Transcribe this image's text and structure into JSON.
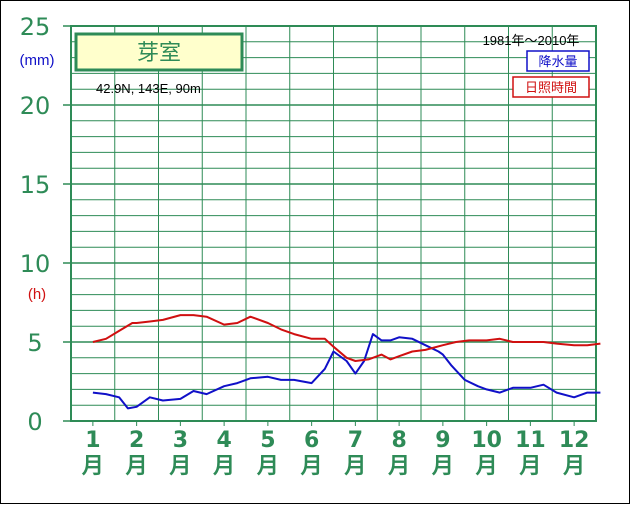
{
  "chart_data": {
    "type": "line",
    "title": "芽室",
    "location": "42.9N,  143E,  90m",
    "period": "1981年～2010年",
    "y_unit_precip": "(mm)",
    "y_unit_sun": "(h)",
    "ylim": [
      0,
      25
    ],
    "y_ticks": [
      "0",
      "5",
      "10",
      "15",
      "20",
      "25"
    ],
    "categories": [
      "1\n月",
      "2\n月",
      "3\n月",
      "4\n月",
      "5\n月",
      "6\n月",
      "7\n月",
      "8\n月",
      "9\n月",
      "10\n月",
      "11\n月",
      "12\n月"
    ],
    "month_numbers": [
      "1",
      "2",
      "3",
      "4",
      "5",
      "6",
      "7",
      "8",
      "9",
      "10",
      "11",
      "12"
    ],
    "month_suffix": "月",
    "series": [
      {
        "name": "降水量",
        "color": "#1010c8",
        "x": [
          1.0,
          1.3,
          1.6,
          1.8,
          2.0,
          2.3,
          2.6,
          3.0,
          3.3,
          3.6,
          4.0,
          4.3,
          4.6,
          5.0,
          5.3,
          5.6,
          6.0,
          6.3,
          6.5,
          6.8,
          7.0,
          7.2,
          7.4,
          7.6,
          7.8,
          8.0,
          8.3,
          8.6,
          8.9,
          9.0,
          9.2,
          9.5,
          9.8,
          10.0,
          10.3,
          10.6,
          11.0,
          11.3,
          11.6,
          12.0,
          12.3,
          12.6
        ],
        "values": [
          1.8,
          1.7,
          1.5,
          0.8,
          0.9,
          1.5,
          1.3,
          1.4,
          1.9,
          1.7,
          2.2,
          2.4,
          2.7,
          2.8,
          2.6,
          2.6,
          2.4,
          3.3,
          4.4,
          3.8,
          3.0,
          3.8,
          5.5,
          5.1,
          5.1,
          5.3,
          5.2,
          4.8,
          4.4,
          4.2,
          3.5,
          2.6,
          2.2,
          2.0,
          1.8,
          2.1,
          2.1,
          2.3,
          1.8,
          1.5,
          1.8,
          1.8
        ]
      },
      {
        "name": "日照時間",
        "color": "#d01010",
        "x": [
          1.0,
          1.3,
          1.6,
          1.9,
          2.0,
          2.3,
          2.6,
          3.0,
          3.3,
          3.6,
          4.0,
          4.3,
          4.6,
          5.0,
          5.3,
          5.6,
          6.0,
          6.3,
          6.5,
          6.8,
          7.0,
          7.3,
          7.6,
          7.8,
          8.0,
          8.3,
          8.6,
          9.0,
          9.3,
          9.6,
          10.0,
          10.3,
          10.6,
          11.0,
          11.3,
          11.6,
          12.0,
          12.3,
          12.6
        ],
        "values": [
          5.0,
          5.2,
          5.7,
          6.2,
          6.2,
          6.3,
          6.4,
          6.7,
          6.7,
          6.6,
          6.1,
          6.2,
          6.6,
          6.2,
          5.8,
          5.5,
          5.2,
          5.2,
          4.7,
          4.0,
          3.8,
          3.9,
          4.2,
          3.9,
          4.1,
          4.4,
          4.5,
          4.8,
          5.0,
          5.1,
          5.1,
          5.2,
          5.0,
          5.0,
          5.0,
          4.9,
          4.8,
          4.8,
          4.9
        ]
      }
    ],
    "grid": true
  }
}
